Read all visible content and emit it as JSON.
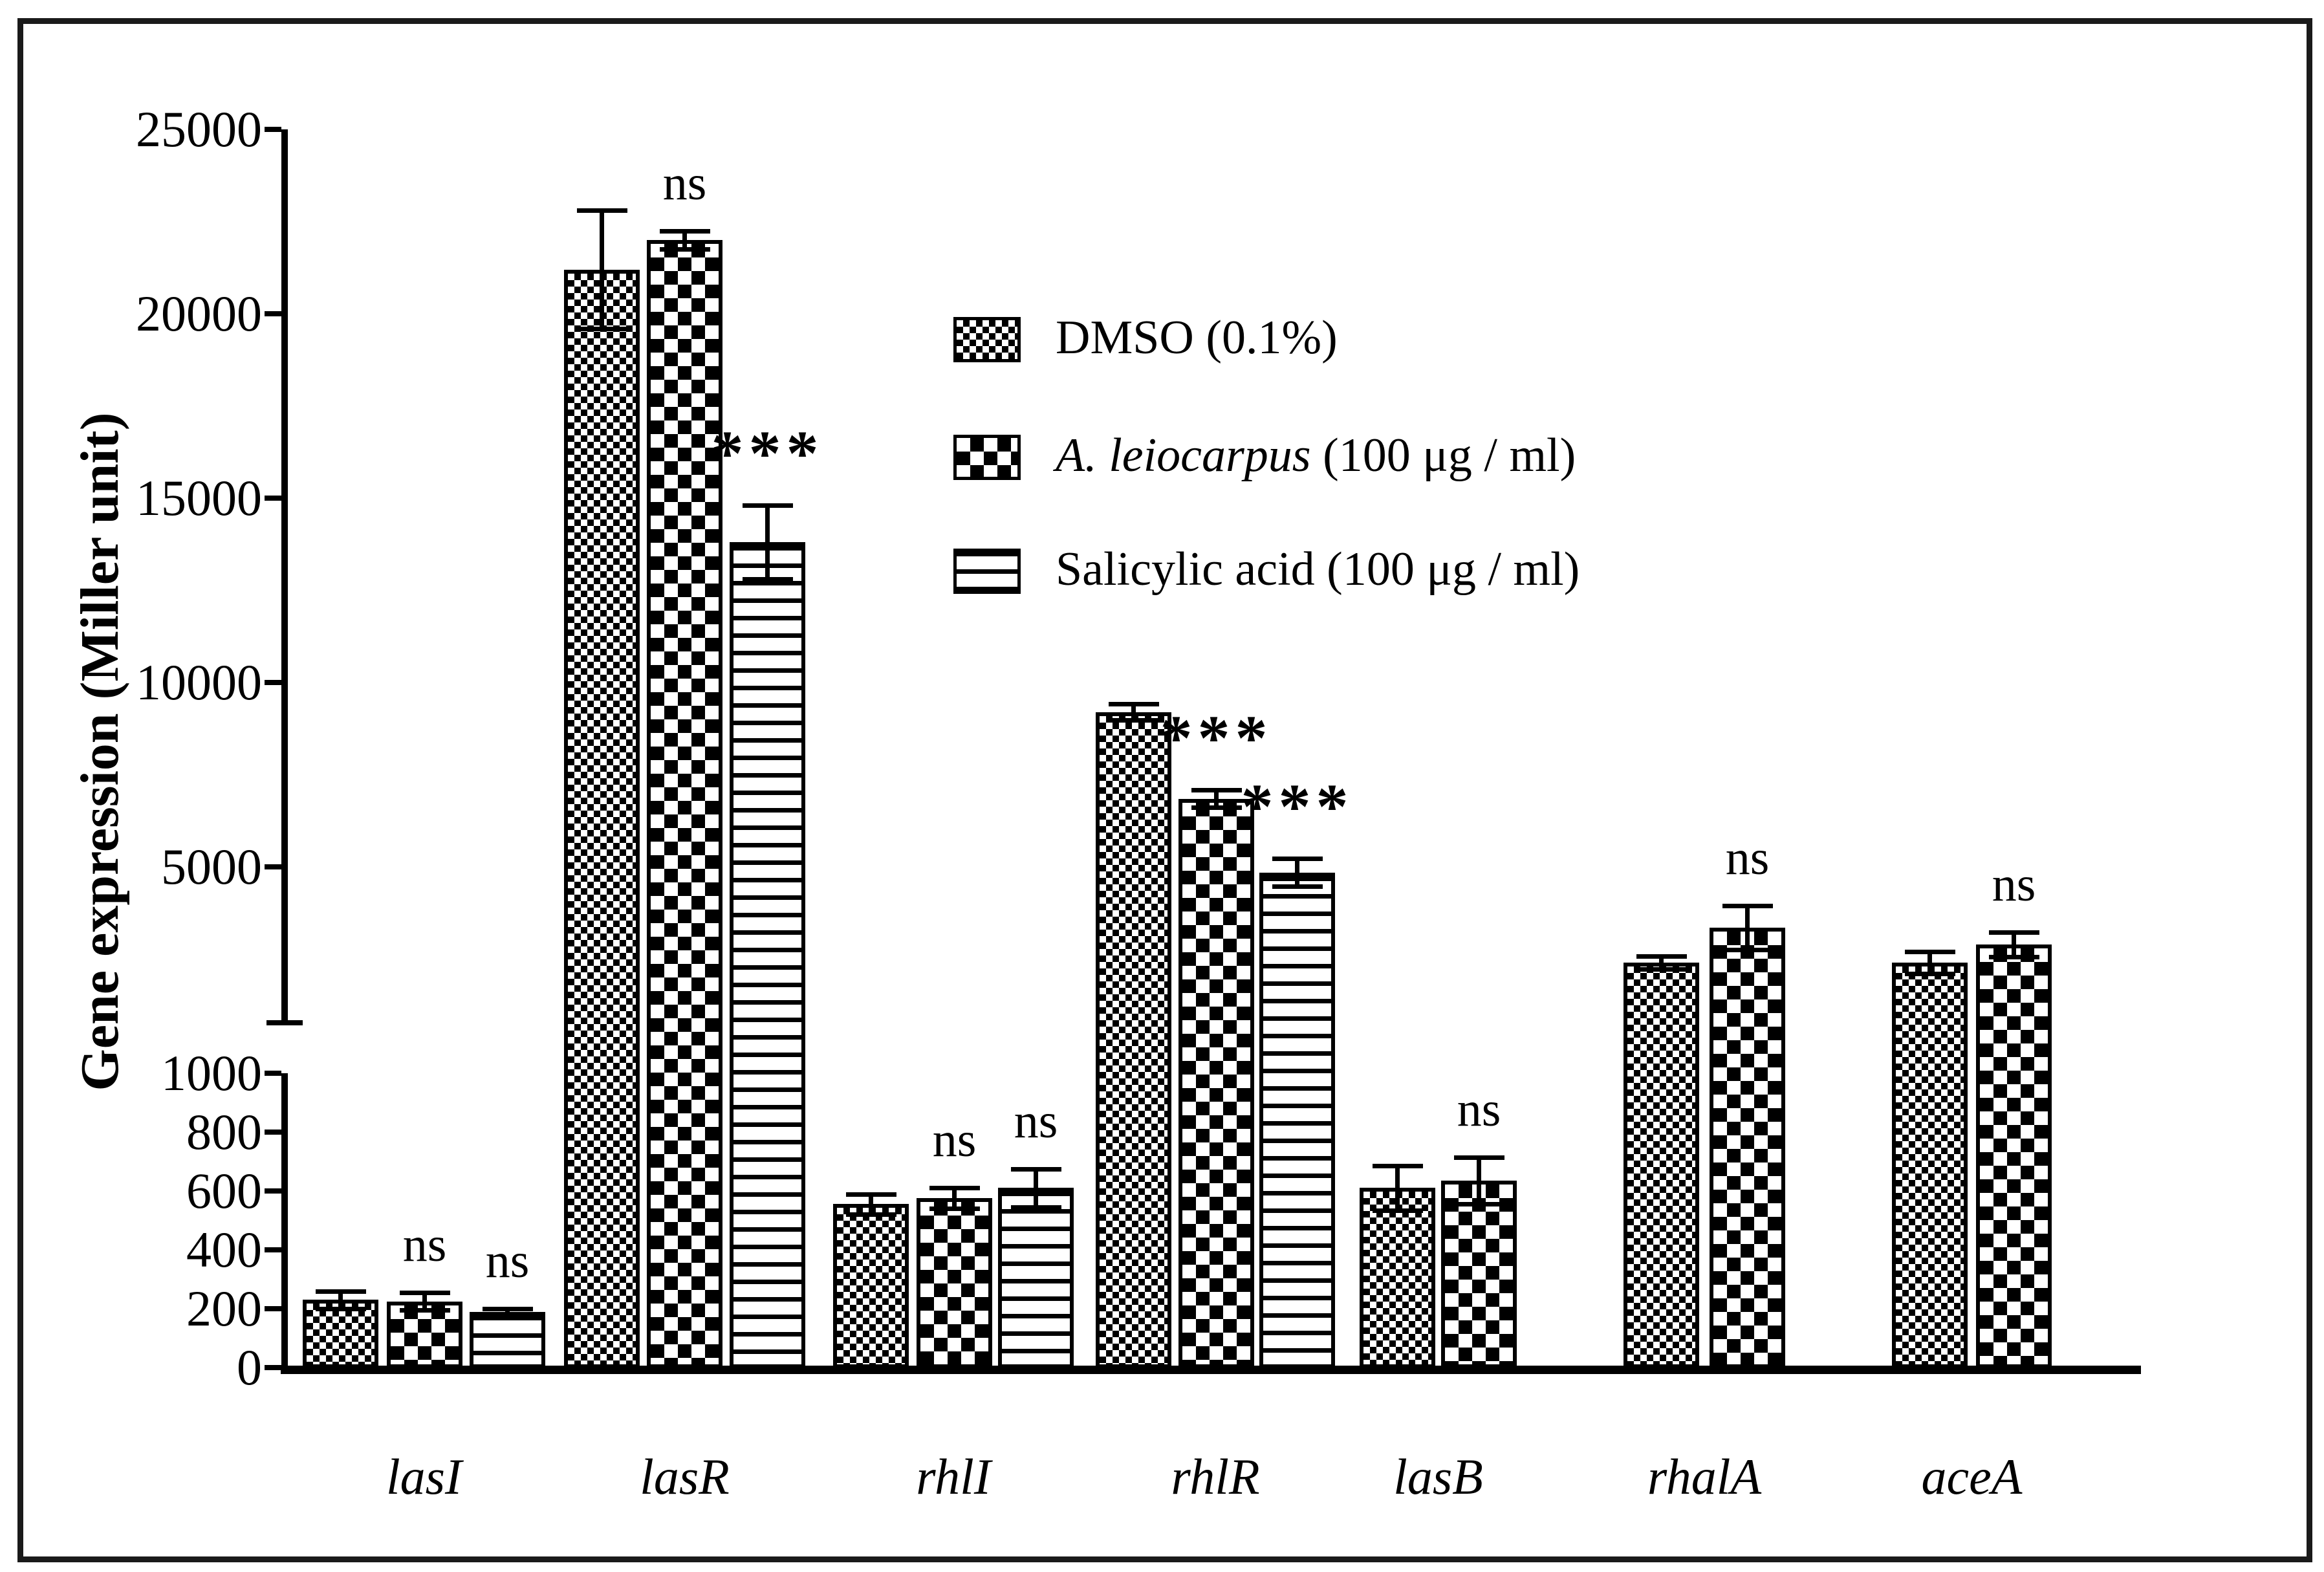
{
  "figure": {
    "background": "#ffffff",
    "border_color": "#1a1a1a"
  },
  "chart_data": {
    "type": "bar",
    "title": "",
    "xlabel": "",
    "ylabel": "Gene expression (Miller unit)",
    "grid": false,
    "legend_position": "upper-middle-inside",
    "y_axis": {
      "broken": true,
      "lower_range": [
        0,
        1000
      ],
      "upper_range": [
        5000,
        25000
      ],
      "lower_ticks": [
        "0",
        "200",
        "400",
        "600",
        "800",
        "1000"
      ],
      "upper_ticks": [
        "5000",
        "10000",
        "15000",
        "20000",
        "25000"
      ]
    },
    "categories": [
      "lasI",
      "lasR",
      "rhlI",
      "rhlR",
      "lasB",
      "rhalA",
      "aceA"
    ],
    "series": [
      {
        "name_italic": "",
        "name": "DMSO (0.1%)",
        "pattern": "fine-checker",
        "values": [
          230,
          21200,
          555,
          9200,
          610,
          2400,
          2400
        ],
        "errors": [
          30,
          1600,
          35,
          220,
          75,
          180,
          300
        ]
      },
      {
        "name_italic": "A. leiocarpus",
        "name": " (100 μg / ml)",
        "pattern": "coarse-checker",
        "values": [
          225,
          22000,
          575,
          6850,
          635,
          3350,
          2900
        ],
        "errors": [
          30,
          250,
          35,
          230,
          80,
          600,
          330
        ]
      },
      {
        "name_italic": "",
        "name": "Salicylic acid (100 μg / ml)",
        "pattern": "horizontal-lines",
        "values": [
          190,
          13800,
          610,
          4850,
          null,
          null,
          null
        ],
        "errors": [
          10,
          1000,
          65,
          380,
          null,
          null,
          null
        ]
      }
    ],
    "significance": [
      {
        "category": "lasI",
        "series": 1,
        "text": "ns"
      },
      {
        "category": "lasI",
        "series": 2,
        "text": "ns"
      },
      {
        "category": "lasR",
        "series": 1,
        "text": "ns"
      },
      {
        "category": "lasR",
        "series": 2,
        "text": "***"
      },
      {
        "category": "rhlI",
        "series": 1,
        "text": "ns"
      },
      {
        "category": "rhlI",
        "series": 2,
        "text": "ns"
      },
      {
        "category": "rhlR",
        "series": 1,
        "text": "***"
      },
      {
        "category": "rhlR",
        "series": 2,
        "text": "***"
      },
      {
        "category": "lasB",
        "series": 1,
        "text": "ns"
      },
      {
        "category": "rhalA",
        "series": 1,
        "text": "ns"
      },
      {
        "category": "aceA",
        "series": 1,
        "text": "ns"
      }
    ]
  }
}
